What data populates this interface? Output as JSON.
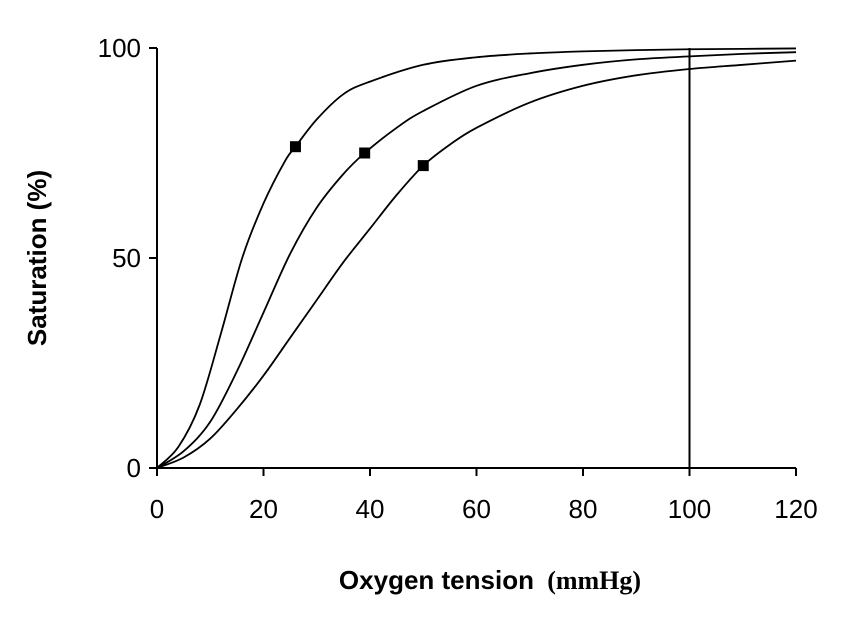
{
  "chart_data": {
    "type": "line",
    "title": "",
    "xlabel": "Oxygen tension",
    "xunit": "(mmHg)",
    "ylabel": "Saturation (%)",
    "xlim": [
      0,
      120
    ],
    "ylim": [
      0,
      100
    ],
    "xticks": [
      0,
      20,
      40,
      60,
      80,
      100,
      120
    ],
    "yticks": [
      0,
      50,
      100
    ],
    "grid": false,
    "legend": "none",
    "reference_line": {
      "x": 100
    },
    "series": [
      {
        "x": [
          0,
          4,
          8,
          12,
          16,
          20,
          24,
          26,
          30,
          35,
          40,
          50,
          60,
          70,
          80,
          90,
          100,
          110,
          120
        ],
        "y": [
          0,
          5,
          15,
          32,
          50,
          63,
          73,
          76.5,
          83,
          89,
          92,
          96,
          97.8,
          98.7,
          99.2,
          99.5,
          99.7,
          99.8,
          99.9
        ]
      },
      {
        "x": [
          0,
          5,
          10,
          15,
          20,
          25,
          30,
          35,
          39,
          45,
          50,
          60,
          70,
          80,
          90,
          100,
          110,
          120
        ],
        "y": [
          0,
          4,
          11,
          23,
          37,
          51,
          62,
          70,
          75,
          81,
          85,
          91,
          94,
          96,
          97.3,
          98,
          98.6,
          99
        ]
      },
      {
        "x": [
          0,
          5,
          10,
          15,
          20,
          25,
          30,
          35,
          40,
          45,
          50,
          55,
          60,
          70,
          80,
          90,
          100,
          110,
          120
        ],
        "y": [
          0,
          2.5,
          7,
          14,
          22,
          31,
          40,
          49,
          57,
          65,
          72,
          77,
          81,
          87,
          91,
          93.5,
          95,
          96,
          97
        ]
      }
    ],
    "markers": [
      {
        "x": 26,
        "y": 76.5
      },
      {
        "x": 39,
        "y": 75
      },
      {
        "x": 50,
        "y": 72
      }
    ]
  }
}
